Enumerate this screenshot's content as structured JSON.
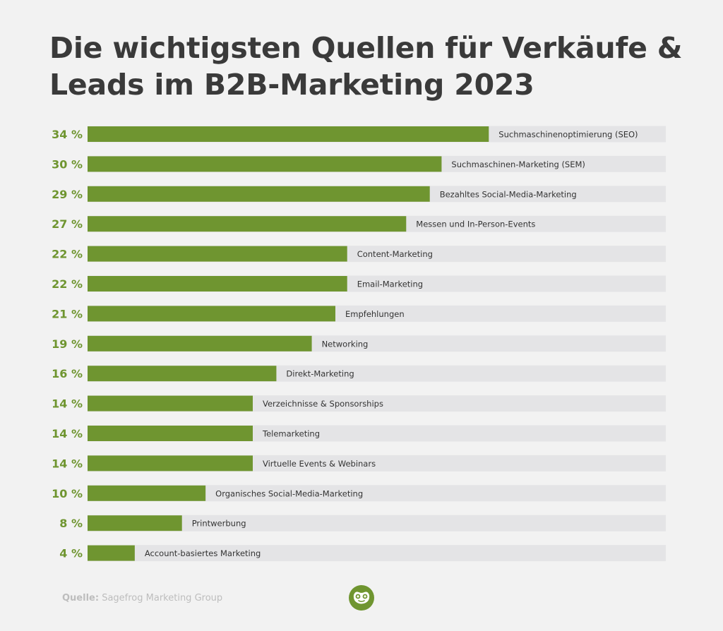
{
  "title_line1": "Die wichtigsten Quellen für Verkäufe &",
  "title_line2": "Leads im B2B-Marketing 2023",
  "source_label": "Quelle:",
  "source_value": "Sagefrog Marketing Group",
  "logo_icon": "frog-logo-icon",
  "colors": {
    "bar": "#6f9530",
    "track": "#e4e4e6",
    "percent_text": "#6f9530",
    "label_text": "#333333",
    "background": "#f2f2f2"
  },
  "chart_data": {
    "type": "bar",
    "orientation": "horizontal",
    "title": "Die wichtigsten Quellen für Verkäufe & Leads im B2B-Marketing 2023",
    "xlabel": "",
    "ylabel": "",
    "xlim": [
      0,
      49
    ],
    "unit": "%",
    "grid": false,
    "categories": [
      "Suchmaschinenoptimierung (SEO)",
      "Suchmaschinen-Marketing (SEM)",
      "Bezahltes Social-Media-Marketing",
      "Messen und In-Person-Events",
      "Content-Marketing",
      "Email-Marketing",
      "Empfehlungen",
      "Networking",
      "Direkt-Marketing",
      "Verzeichnisse & Sponsorships",
      "Telemarketing",
      "Virtuelle Events & Webinars",
      "Organisches Social-Media-Marketing",
      "Printwerbung",
      "Account-basiertes Marketing"
    ],
    "values": [
      34,
      30,
      29,
      27,
      22,
      22,
      21,
      19,
      16,
      14,
      14,
      14,
      10,
      8,
      4
    ],
    "value_labels": [
      "34 %",
      "30 %",
      "29 %",
      "27 %",
      "22 %",
      "22 %",
      "21 %",
      "19 %",
      "16 %",
      "14 %",
      "14 %",
      "14 %",
      "10 %",
      "8 %",
      "4 %"
    ]
  }
}
